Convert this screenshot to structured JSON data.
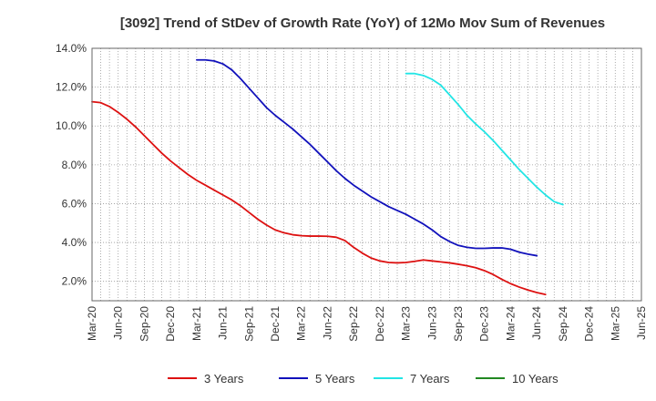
{
  "chart_data": {
    "type": "line",
    "title": "[3092]  Trend of StDev of Growth Rate (YoY) of 12Mo Mov Sum of Revenues",
    "xlabel": "",
    "ylabel": "",
    "ylim": [
      1.0,
      14.0
    ],
    "y_ticks": [
      2.0,
      4.0,
      6.0,
      8.0,
      10.0,
      12.0,
      14.0
    ],
    "y_tick_labels": [
      "2.0%",
      "4.0%",
      "6.0%",
      "8.0%",
      "10.0%",
      "12.0%",
      "14.0%"
    ],
    "x_start": "2020-03",
    "x_end": "2025-06",
    "x_tick_labels": [
      "Mar-20",
      "Jun-20",
      "Sep-20",
      "Dec-20",
      "Mar-21",
      "Jun-21",
      "Sep-21",
      "Dec-21",
      "Mar-22",
      "Jun-22",
      "Sep-22",
      "Dec-22",
      "Mar-23",
      "Jun-23",
      "Sep-23",
      "Dec-23",
      "Mar-24",
      "Jun-24",
      "Sep-24",
      "Dec-24",
      "Mar-25",
      "Jun-25"
    ],
    "grid": true,
    "legend_position": "bottom",
    "series": [
      {
        "name": "3 Years",
        "color": "#dd1111",
        "start_month": 0,
        "values": [
          11.25,
          11.2,
          11.0,
          10.7,
          10.35,
          9.95,
          9.5,
          9.05,
          8.6,
          8.2,
          7.85,
          7.5,
          7.2,
          6.95,
          6.7,
          6.45,
          6.2,
          5.9,
          5.55,
          5.2,
          4.9,
          4.65,
          4.5,
          4.4,
          4.35,
          4.33,
          4.33,
          4.32,
          4.27,
          4.1,
          3.75,
          3.45,
          3.2,
          3.05,
          2.97,
          2.95,
          2.97,
          3.03,
          3.1,
          3.05,
          3.0,
          2.95,
          2.88,
          2.8,
          2.7,
          2.55,
          2.35,
          2.1,
          1.88,
          1.7,
          1.55,
          1.42,
          1.32
        ]
      },
      {
        "name": "5 Years",
        "color": "#1111bb",
        "start_month": 12,
        "values": [
          13.4,
          13.4,
          13.35,
          13.2,
          12.9,
          12.45,
          11.95,
          11.45,
          10.95,
          10.55,
          10.2,
          9.85,
          9.45,
          9.05,
          8.6,
          8.15,
          7.7,
          7.3,
          6.95,
          6.65,
          6.35,
          6.1,
          5.85,
          5.65,
          5.45,
          5.2,
          4.95,
          4.65,
          4.3,
          4.05,
          3.85,
          3.75,
          3.7,
          3.7,
          3.72,
          3.72,
          3.65,
          3.5,
          3.4,
          3.32
        ]
      },
      {
        "name": "7 Years",
        "color": "#22e5e5",
        "start_month": 36,
        "values": [
          12.7,
          12.7,
          12.6,
          12.4,
          12.1,
          11.6,
          11.1,
          10.55,
          10.1,
          9.7,
          9.25,
          8.75,
          8.25,
          7.75,
          7.3,
          6.85,
          6.45,
          6.1,
          5.95
        ]
      },
      {
        "name": "10 Years",
        "color": "#228822",
        "start_month": 0,
        "values": []
      }
    ]
  }
}
